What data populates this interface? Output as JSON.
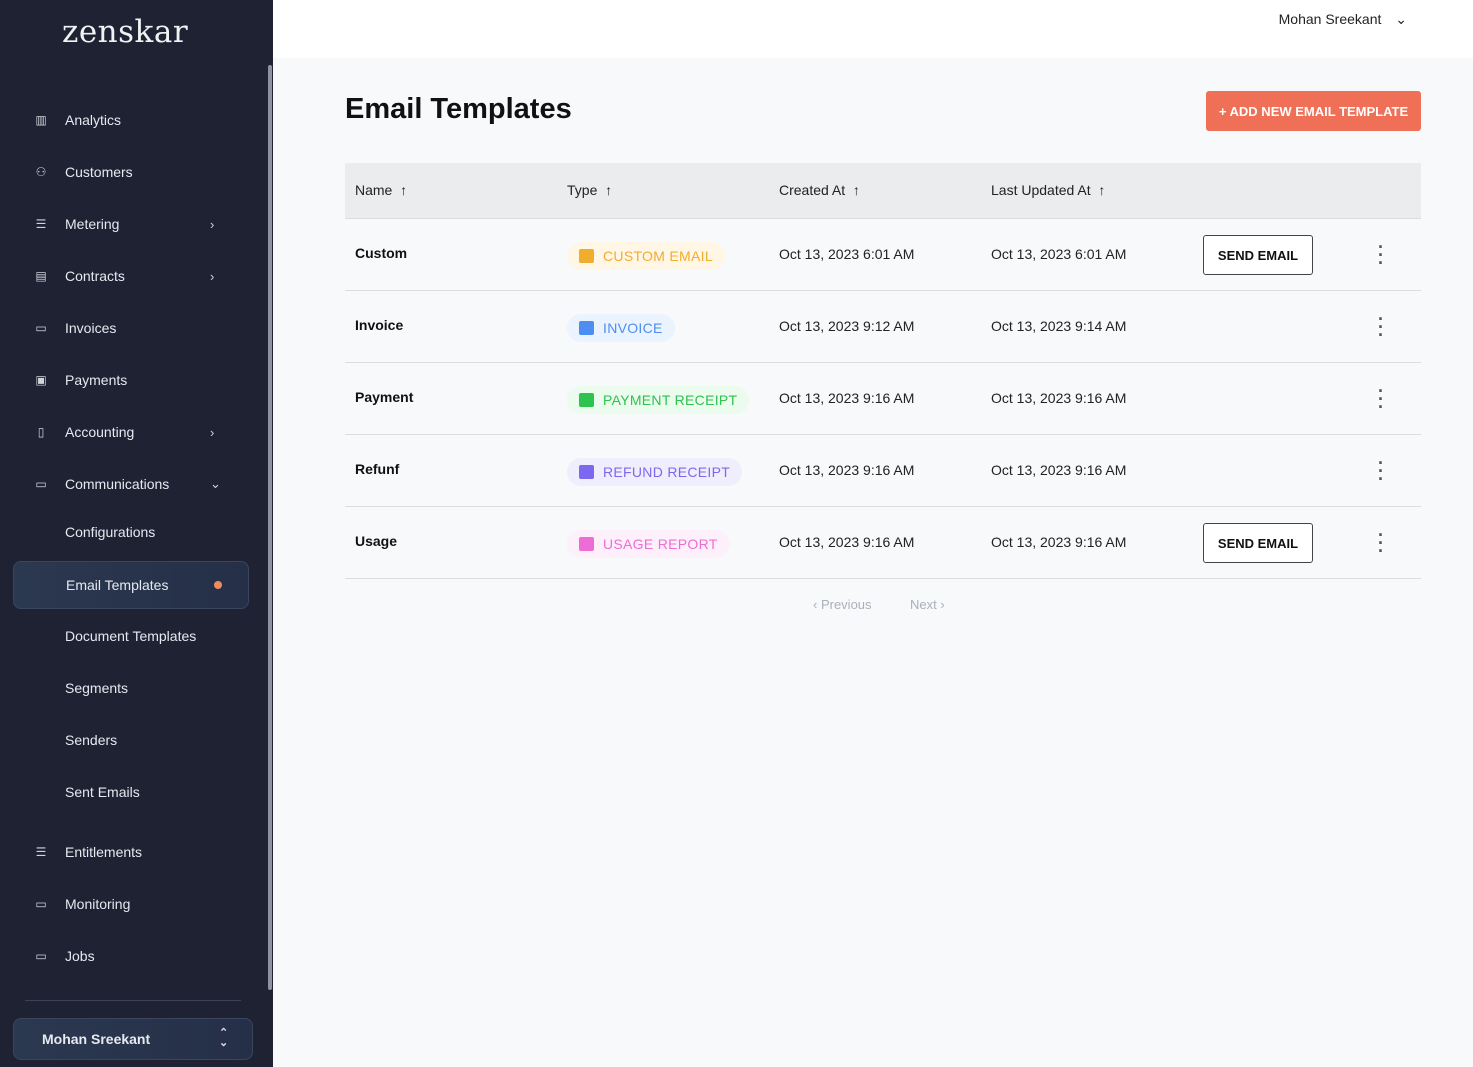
{
  "brand": "zenskar",
  "sidebar": {
    "items": [
      {
        "label": "Analytics",
        "icon": "bar-chart-icon"
      },
      {
        "label": "Customers",
        "icon": "users-icon"
      },
      {
        "label": "Metering",
        "icon": "sliders-icon",
        "chevron": "›"
      },
      {
        "label": "Contracts",
        "icon": "contract-icon",
        "chevron": "›"
      },
      {
        "label": "Invoices",
        "icon": "card-icon"
      },
      {
        "label": "Payments",
        "icon": "payment-icon"
      },
      {
        "label": "Accounting",
        "icon": "calculator-icon",
        "chevron": "›"
      },
      {
        "label": "Communications",
        "icon": "inbox-icon",
        "chevron": "⌄"
      }
    ],
    "sub_items": [
      "Configurations",
      "Email Templates",
      "Document Templates",
      "Segments",
      "Senders",
      "Sent Emails"
    ],
    "bottom_items": [
      {
        "label": "Entitlements",
        "icon": "sliders-icon"
      },
      {
        "label": "Monitoring",
        "icon": "monitor-icon"
      },
      {
        "label": "Jobs",
        "icon": "monitor-icon"
      }
    ],
    "user": "Mohan Sreekant"
  },
  "header": {
    "user": "Mohan Sreekant"
  },
  "page": {
    "title": "Email Templates",
    "add_button": "+ ADD NEW EMAIL TEMPLATE"
  },
  "table": {
    "columns": [
      "Name",
      "Type",
      "Created At",
      "Last Updated At"
    ],
    "rows": [
      {
        "name": "Custom",
        "type": "CUSTOM EMAIL",
        "color": "#f0ad2e",
        "bg": "#fff6e6",
        "created": "Oct 13, 2023 6:01 AM",
        "updated": "Oct 13, 2023 6:01 AM",
        "send": "SEND EMAIL"
      },
      {
        "name": "Invoice",
        "type": "INVOICE",
        "color": "#4d8ef0",
        "bg": "#ebf3ff",
        "created": "Oct 13, 2023 9:12 AM",
        "updated": "Oct 13, 2023 9:14 AM"
      },
      {
        "name": "Payment",
        "type": "PAYMENT RECEIPT",
        "color": "#2ec24f",
        "bg": "#ebfbee",
        "created": "Oct 13, 2023 9:16 AM",
        "updated": "Oct 13, 2023 9:16 AM"
      },
      {
        "name": "Refunf",
        "type": "REFUND RECEIPT",
        "color": "#7c68ee",
        "bg": "#f0eefc",
        "created": "Oct 13, 2023 9:16 AM",
        "updated": "Oct 13, 2023 9:16 AM"
      },
      {
        "name": "Usage",
        "type": "USAGE REPORT",
        "color": "#ee6cd6",
        "bg": "#fdf0fb",
        "created": "Oct 13, 2023 9:16 AM",
        "updated": "Oct 13, 2023 9:16 AM",
        "send": "SEND EMAIL"
      }
    ]
  },
  "pagination": {
    "previous": "Previous",
    "next": "Next"
  }
}
